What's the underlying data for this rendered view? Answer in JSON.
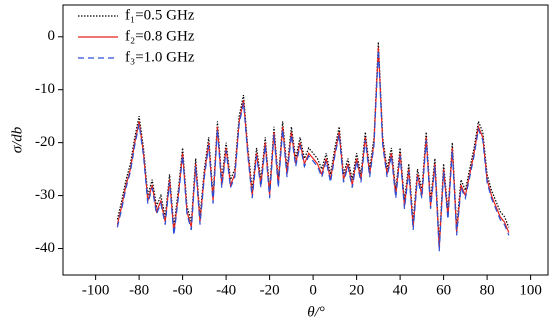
{
  "chart_data": {
    "type": "line",
    "xlabel": "θ/°",
    "ylabel": "σ/db",
    "x": [
      -90,
      -88,
      -86,
      -84,
      -82,
      -80,
      -78,
      -76,
      -74,
      -72,
      -70,
      -68,
      -66,
      -64,
      -62,
      -60,
      -58,
      -56,
      -54,
      -52,
      -50,
      -48,
      -46,
      -44,
      -42,
      -40,
      -38,
      -36,
      -34,
      -32,
      -30,
      -28,
      -26,
      -24,
      -22,
      -20,
      -18,
      -16,
      -14,
      -12,
      -10,
      -8,
      -6,
      -4,
      -2,
      0,
      2,
      4,
      6,
      8,
      10,
      12,
      14,
      16,
      18,
      20,
      22,
      24,
      26,
      28,
      30,
      32,
      34,
      36,
      38,
      40,
      42,
      44,
      46,
      48,
      50,
      52,
      54,
      56,
      58,
      60,
      62,
      64,
      66,
      68,
      70,
      72,
      74,
      76,
      78,
      80,
      82,
      84,
      86,
      88,
      90
    ],
    "series": [
      {
        "name": "f₁=0.5 GHz",
        "color": "#000000",
        "dash": "dotted",
        "values": [
          -34.5,
          -31,
          -27,
          -24,
          -19,
          -15,
          -21,
          -30,
          -27,
          -32,
          -30,
          -34,
          -26,
          -36,
          -29,
          -21,
          -32,
          -35,
          -23,
          -34,
          -25,
          -19,
          -30,
          -16,
          -27,
          -20,
          -27,
          -25,
          -15,
          -11,
          -21,
          -29,
          -21,
          -27,
          -19,
          -29,
          -17,
          -27,
          -16,
          -25,
          -17,
          -23,
          -19,
          -23,
          -21,
          -22,
          -23,
          -25,
          -22,
          -26,
          -21,
          -17,
          -26,
          -23,
          -27,
          -22,
          -26,
          -18,
          -25,
          -19,
          -1,
          -19,
          -25,
          -21,
          -29,
          -21,
          -31,
          -24,
          -35,
          -25,
          -29,
          -18,
          -31,
          -23,
          -39,
          -24,
          -33,
          -20,
          -36,
          -27,
          -29,
          -25,
          -21,
          -16,
          -18,
          -26,
          -29,
          -31,
          -33,
          -34,
          -36
        ]
      },
      {
        "name": "f₂=0.8 GHz",
        "color": "#e8221c",
        "dash": "solid",
        "values": [
          -35.5,
          -32,
          -28,
          -25,
          -20,
          -16,
          -22,
          -31,
          -28,
          -33,
          -31,
          -35,
          -27,
          -37,
          -30,
          -22,
          -33,
          -36,
          -24,
          -35,
          -26,
          -20,
          -31,
          -17,
          -28,
          -21,
          -28,
          -26,
          -16,
          -12,
          -22,
          -30,
          -22,
          -28,
          -20,
          -30,
          -18,
          -28,
          -17,
          -26,
          -18,
          -24,
          -20,
          -24,
          -22,
          -23,
          -24,
          -26,
          -23,
          -27,
          -22,
          -18,
          -27,
          -24,
          -28,
          -23,
          -27,
          -19,
          -26,
          -20,
          -2,
          -20,
          -26,
          -22,
          -30,
          -22,
          -32,
          -25,
          -36,
          -26,
          -30,
          -19,
          -32,
          -24,
          -40,
          -25,
          -34,
          -21,
          -37,
          -28,
          -30,
          -26,
          -22,
          -17,
          -19,
          -27,
          -30,
          -32,
          -34,
          -35,
          -37
        ]
      },
      {
        "name": "f₃=1.0 GHz",
        "color": "#2a4fd6",
        "dash": "dashed",
        "values": [
          -36,
          -32.5,
          -28.5,
          -25.5,
          -20.5,
          -16.5,
          -22.5,
          -31.5,
          -28.5,
          -33.5,
          -31.5,
          -35.5,
          -27.5,
          -37.5,
          -30.5,
          -22.5,
          -33.5,
          -36.5,
          -24.5,
          -35.5,
          -26.5,
          -20.5,
          -31.5,
          -17.5,
          -28.5,
          -21.5,
          -28.5,
          -26.5,
          -16.5,
          -12.5,
          -22.5,
          -30.5,
          -22.5,
          -28.5,
          -20.5,
          -30.5,
          -18.5,
          -28.5,
          -17.5,
          -26.5,
          -18.5,
          -24.5,
          -20.5,
          -24.5,
          -22.5,
          -23.5,
          -24.5,
          -26.5,
          -23.5,
          -27.5,
          -22.5,
          -18.5,
          -27.5,
          -24.5,
          -28.5,
          -23.5,
          -27.5,
          -19.5,
          -26.5,
          -20.5,
          -2.5,
          -20.5,
          -26.5,
          -22.5,
          -30.5,
          -22.5,
          -32.5,
          -25.5,
          -36.5,
          -26.5,
          -30.5,
          -19.5,
          -32.5,
          -24.5,
          -40.5,
          -25.5,
          -34.5,
          -21.5,
          -37.5,
          -28.5,
          -30.5,
          -26.5,
          -22.5,
          -17.5,
          -19.5,
          -27.5,
          -30.5,
          -32.5,
          -34.5,
          -35.5,
          -37.5
        ]
      }
    ],
    "xlim": [
      -115,
      108
    ],
    "xticks": [
      -100,
      -80,
      -60,
      -40,
      -20,
      0,
      20,
      40,
      60,
      80,
      100
    ],
    "ylim": [
      -45,
      6
    ],
    "yticks": [
      0,
      -10,
      -20,
      -30,
      -40
    ],
    "legend": "upper left",
    "grid": false
  }
}
